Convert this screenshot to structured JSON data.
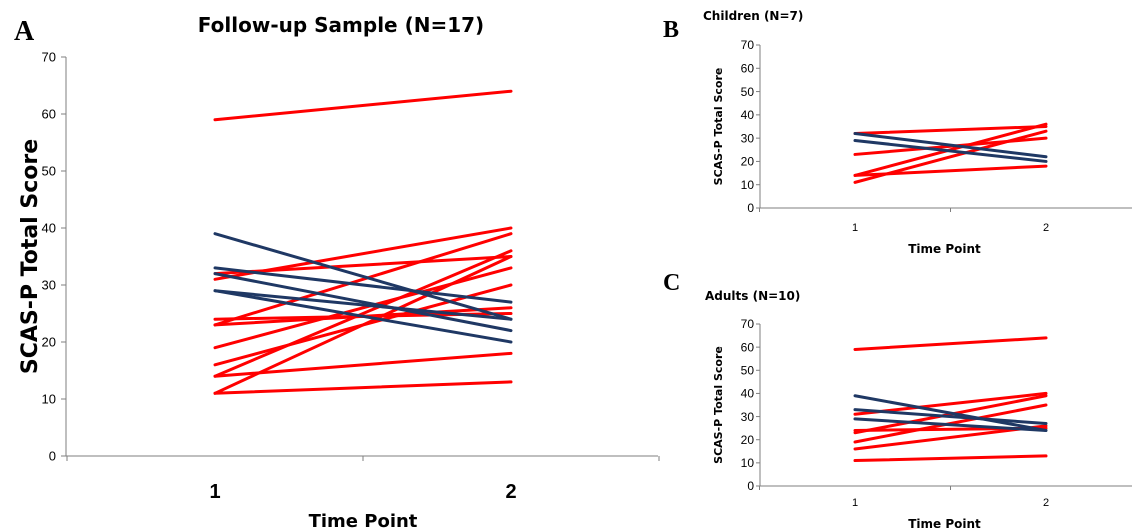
{
  "chart_data": [
    {
      "panel": "A",
      "type": "line",
      "title": "Follow-up Sample (N=17)",
      "xlabel": "Time Point",
      "ylabel": "SCAS-P Total Score",
      "x": [
        1,
        2
      ],
      "xtick_labels": [
        "1",
        "2"
      ],
      "ylim": [
        0,
        70
      ],
      "yticks": [
        0,
        10,
        20,
        30,
        40,
        50,
        60,
        70
      ],
      "grid": false,
      "colors": {
        "increase": "#ff0000",
        "decrease": "#1f3864"
      },
      "series": [
        {
          "values": [
            59,
            64
          ],
          "color": "#ff0000"
        },
        {
          "values": [
            31,
            40
          ],
          "color": "#ff0000"
        },
        {
          "values": [
            32,
            35
          ],
          "color": "#ff0000"
        },
        {
          "values": [
            23,
            39
          ],
          "color": "#ff0000"
        },
        {
          "values": [
            14,
            36
          ],
          "color": "#ff0000"
        },
        {
          "values": [
            11,
            35
          ],
          "color": "#ff0000"
        },
        {
          "values": [
            19,
            33
          ],
          "color": "#ff0000"
        },
        {
          "values": [
            16,
            30
          ],
          "color": "#ff0000"
        },
        {
          "values": [
            24,
            25
          ],
          "color": "#ff0000"
        },
        {
          "values": [
            23,
            26
          ],
          "color": "#ff0000"
        },
        {
          "values": [
            14,
            18
          ],
          "color": "#ff0000"
        },
        {
          "values": [
            11,
            13
          ],
          "color": "#ff0000"
        },
        {
          "values": [
            39,
            24
          ],
          "color": "#1f3864"
        },
        {
          "values": [
            33,
            27
          ],
          "color": "#1f3864"
        },
        {
          "values": [
            32,
            22
          ],
          "color": "#1f3864"
        },
        {
          "values": [
            29,
            24
          ],
          "color": "#1f3864"
        },
        {
          "values": [
            29,
            20
          ],
          "color": "#1f3864"
        }
      ]
    },
    {
      "panel": "B",
      "type": "line",
      "title": "Children (N=7)",
      "xlabel": "Time Point",
      "ylabel": "SCAS-P Total Score",
      "x": [
        1,
        2
      ],
      "xtick_labels": [
        "1",
        "2"
      ],
      "ylim": [
        0,
        70
      ],
      "yticks": [
        0,
        10,
        20,
        30,
        40,
        50,
        60,
        70
      ],
      "grid": false,
      "series": [
        {
          "values": [
            32,
            35
          ],
          "color": "#ff0000"
        },
        {
          "values": [
            23,
            30
          ],
          "color": "#ff0000"
        },
        {
          "values": [
            14,
            36
          ],
          "color": "#ff0000"
        },
        {
          "values": [
            11,
            33
          ],
          "color": "#ff0000"
        },
        {
          "values": [
            14,
            18
          ],
          "color": "#ff0000"
        },
        {
          "values": [
            32,
            22
          ],
          "color": "#1f3864"
        },
        {
          "values": [
            29,
            20
          ],
          "color": "#1f3864"
        }
      ]
    },
    {
      "panel": "C",
      "type": "line",
      "title": "Adults (N=10)",
      "xlabel": "Time Point",
      "ylabel": "SCAS-P Total Score",
      "x": [
        1,
        2
      ],
      "xtick_labels": [
        "1",
        "2"
      ],
      "ylim": [
        0,
        70
      ],
      "yticks": [
        0,
        10,
        20,
        30,
        40,
        50,
        60,
        70
      ],
      "grid": false,
      "series": [
        {
          "values": [
            59,
            64
          ],
          "color": "#ff0000"
        },
        {
          "values": [
            31,
            40
          ],
          "color": "#ff0000"
        },
        {
          "values": [
            23,
            39
          ],
          "color": "#ff0000"
        },
        {
          "values": [
            19,
            35
          ],
          "color": "#ff0000"
        },
        {
          "values": [
            24,
            25
          ],
          "color": "#ff0000"
        },
        {
          "values": [
            16,
            26
          ],
          "color": "#ff0000"
        },
        {
          "values": [
            11,
            13
          ],
          "color": "#ff0000"
        },
        {
          "values": [
            39,
            24
          ],
          "color": "#1f3864"
        },
        {
          "values": [
            33,
            27
          ],
          "color": "#1f3864"
        },
        {
          "values": [
            29,
            24
          ],
          "color": "#1f3864"
        }
      ]
    }
  ]
}
